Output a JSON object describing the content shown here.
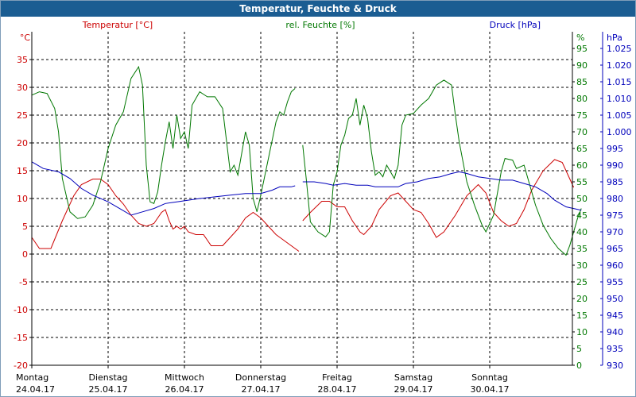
{
  "window": {
    "title": "Temperatur, Feuchte & Druck"
  },
  "colors": {
    "temperature": "#cc0000",
    "humidity": "#007700",
    "pressure": "#0000bb",
    "grid": "#000000",
    "axis_text": "#000000"
  },
  "chart_data": {
    "type": "line",
    "title": "Temperatur, Feuchte & Druck",
    "grid": true,
    "xlim": [
      0,
      7
    ],
    "x_days": [
      {
        "day": "Montag",
        "date": "24.04.17"
      },
      {
        "day": "Dienstag",
        "date": "25.04.17"
      },
      {
        "day": "Mittwoch",
        "date": "26.04.17"
      },
      {
        "day": "Donnerstag",
        "date": "27.04.17"
      },
      {
        "day": "Freitag",
        "date": "28.04.17"
      },
      {
        "day": "Samstag",
        "date": "29.04.17"
      },
      {
        "day": "Sonntag",
        "date": "30.04.17"
      }
    ],
    "axes": {
      "temperature": {
        "label": "Temperatur [°C]",
        "unit": "°C",
        "ylim": [
          -20,
          40
        ],
        "ticks": [
          "35",
          "30",
          "25",
          "20",
          "15",
          "10",
          "5",
          "0",
          "-5",
          "-10",
          "-15",
          "-20"
        ],
        "tick_values": [
          35,
          30,
          25,
          20,
          15,
          10,
          5,
          0,
          -5,
          -10,
          -15,
          -20
        ]
      },
      "humidity": {
        "label": "rel. Feuchte [%]",
        "unit": "%",
        "ylim": [
          0,
          100
        ],
        "ticks": [
          "95",
          "90",
          "85",
          "80",
          "75",
          "70",
          "65",
          "60",
          "55",
          "50",
          "45",
          "40",
          "35",
          "30",
          "25",
          "20",
          "15",
          "10",
          "5",
          "0"
        ],
        "tick_values": [
          95,
          90,
          85,
          80,
          75,
          70,
          65,
          60,
          55,
          50,
          45,
          40,
          35,
          30,
          25,
          20,
          15,
          10,
          5,
          0
        ]
      },
      "pressure": {
        "label": "Druck [hPa]",
        "unit": "hPa",
        "ylim": [
          930,
          1030
        ],
        "ticks": [
          "1.025",
          "1.020",
          "1.015",
          "1.010",
          "1.005",
          "1.000",
          "995",
          "990",
          "985",
          "980",
          "975",
          "970",
          "965",
          "960",
          "955",
          "950",
          "945",
          "940",
          "935",
          "930"
        ],
        "tick_values": [
          1025,
          1020,
          1015,
          1010,
          1005,
          1000,
          995,
          990,
          985,
          980,
          975,
          970,
          965,
          960,
          955,
          950,
          945,
          940,
          935,
          930
        ]
      }
    },
    "series": [
      {
        "name": "Temperatur [°C]",
        "axis": "temperature",
        "color": "#cc0000",
        "segments": [
          [
            [
              0.0,
              3.0
            ],
            [
              0.1,
              1.0
            ],
            [
              0.25,
              1.0
            ],
            [
              0.4,
              6.0
            ],
            [
              0.55,
              10.5
            ],
            [
              0.65,
              12.5
            ],
            [
              0.8,
              13.5
            ],
            [
              0.9,
              13.5
            ],
            [
              1.0,
              12.5
            ],
            [
              1.1,
              10.5
            ],
            [
              1.2,
              9.0
            ],
            [
              1.3,
              7.0
            ],
            [
              1.4,
              5.5
            ],
            [
              1.5,
              5.0
            ],
            [
              1.6,
              5.5
            ],
            [
              1.7,
              7.5
            ],
            [
              1.75,
              8.0
            ],
            [
              1.8,
              6.0
            ],
            [
              1.85,
              4.5
            ],
            [
              1.9,
              5.0
            ],
            [
              1.95,
              4.5
            ],
            [
              2.0,
              5.0
            ],
            [
              2.05,
              4.0
            ],
            [
              2.15,
              3.5
            ],
            [
              2.25,
              3.5
            ],
            [
              2.35,
              1.5
            ],
            [
              2.5,
              1.5
            ],
            [
              2.6,
              3.0
            ],
            [
              2.7,
              4.5
            ],
            [
              2.8,
              6.5
            ],
            [
              2.9,
              7.5
            ],
            [
              3.0,
              6.5
            ],
            [
              3.1,
              5.0
            ],
            [
              3.2,
              3.5
            ],
            [
              3.25,
              3.0
            ],
            [
              3.35,
              2.0
            ],
            [
              3.45,
              1.0
            ],
            [
              3.5,
              0.5
            ]
          ],
          [
            [
              3.55,
              6.0
            ],
            [
              3.65,
              7.5
            ],
            [
              3.8,
              9.5
            ],
            [
              3.9,
              9.5
            ],
            [
              4.0,
              8.5
            ],
            [
              4.1,
              8.5
            ],
            [
              4.2,
              6.0
            ],
            [
              4.3,
              4.0
            ],
            [
              4.35,
              3.5
            ],
            [
              4.45,
              5.0
            ],
            [
              4.55,
              8.0
            ],
            [
              4.7,
              10.5
            ],
            [
              4.8,
              11.0
            ],
            [
              4.9,
              9.5
            ],
            [
              5.0,
              8.0
            ],
            [
              5.1,
              7.5
            ],
            [
              5.2,
              5.5
            ],
            [
              5.3,
              3.0
            ],
            [
              5.4,
              4.0
            ],
            [
              5.55,
              7.0
            ],
            [
              5.7,
              10.5
            ],
            [
              5.85,
              12.5
            ],
            [
              5.95,
              11.0
            ],
            [
              6.05,
              7.5
            ],
            [
              6.15,
              6.0
            ],
            [
              6.25,
              5.0
            ],
            [
              6.35,
              5.5
            ],
            [
              6.45,
              8.0
            ],
            [
              6.55,
              11.5
            ],
            [
              6.7,
              15.0
            ],
            [
              6.85,
              17.0
            ],
            [
              6.95,
              16.5
            ],
            [
              7.05,
              13.5
            ],
            [
              7.1,
              12.0
            ]
          ]
        ]
      },
      {
        "name": "rel. Feuchte [%]",
        "axis": "humidity",
        "color": "#007700",
        "segments": [
          [
            [
              0.0,
              81.0
            ],
            [
              0.1,
              82.0
            ],
            [
              0.2,
              81.5
            ],
            [
              0.3,
              77.0
            ],
            [
              0.35,
              70.0
            ],
            [
              0.4,
              56.0
            ],
            [
              0.5,
              46.0
            ],
            [
              0.6,
              44.0
            ],
            [
              0.7,
              44.5
            ],
            [
              0.8,
              48.0
            ],
            [
              0.9,
              55.0
            ],
            [
              1.0,
              65.0
            ],
            [
              1.1,
              72.0
            ],
            [
              1.2,
              76.0
            ],
            [
              1.3,
              86.0
            ],
            [
              1.4,
              89.5
            ],
            [
              1.45,
              84.0
            ],
            [
              1.5,
              60.0
            ],
            [
              1.55,
              49.0
            ],
            [
              1.6,
              48.5
            ],
            [
              1.65,
              52.0
            ],
            [
              1.7,
              60.0
            ],
            [
              1.75,
              67.0
            ],
            [
              1.8,
              73.0
            ],
            [
              1.85,
              65.0
            ],
            [
              1.9,
              75.0
            ],
            [
              1.95,
              68.0
            ],
            [
              2.0,
              70.0
            ],
            [
              2.05,
              65.0
            ],
            [
              2.1,
              78.0
            ],
            [
              2.2,
              82.0
            ],
            [
              2.3,
              80.5
            ],
            [
              2.4,
              80.5
            ],
            [
              2.5,
              77.0
            ],
            [
              2.6,
              58.0
            ],
            [
              2.65,
              60.0
            ],
            [
              2.7,
              57.0
            ],
            [
              2.8,
              70.0
            ],
            [
              2.85,
              66.0
            ],
            [
              2.9,
              50.0
            ],
            [
              2.95,
              46.0
            ],
            [
              3.0,
              51.0
            ],
            [
              3.1,
              62.0
            ],
            [
              3.2,
              73.0
            ],
            [
              3.25,
              76.0
            ],
            [
              3.3,
              75.0
            ],
            [
              3.35,
              79.0
            ],
            [
              3.4,
              82.0
            ],
            [
              3.45,
              83.0
            ]
          ],
          [
            [
              3.55,
              66.0
            ],
            [
              3.6,
              55.0
            ],
            [
              3.65,
              43.0
            ],
            [
              3.75,
              40.0
            ],
            [
              3.85,
              38.5
            ],
            [
              3.9,
              40.0
            ],
            [
              3.95,
              54.0
            ],
            [
              4.0,
              58.0
            ],
            [
              4.05,
              66.0
            ],
            [
              4.1,
              69.0
            ],
            [
              4.15,
              74.0
            ],
            [
              4.2,
              75.0
            ],
            [
              4.25,
              80.0
            ],
            [
              4.3,
              72.0
            ],
            [
              4.35,
              78.0
            ],
            [
              4.4,
              74.0
            ],
            [
              4.45,
              64.0
            ],
            [
              4.5,
              57.0
            ],
            [
              4.55,
              58.0
            ],
            [
              4.6,
              56.5
            ],
            [
              4.65,
              60.0
            ],
            [
              4.7,
              58.0
            ],
            [
              4.75,
              56.0
            ],
            [
              4.8,
              60.0
            ],
            [
              4.85,
              72.0
            ],
            [
              4.9,
              75.0
            ],
            [
              5.0,
              75.5
            ],
            [
              5.1,
              78.0
            ],
            [
              5.2,
              80.0
            ],
            [
              5.3,
              84.0
            ],
            [
              5.4,
              85.5
            ],
            [
              5.5,
              84.0
            ],
            [
              5.55,
              75.0
            ],
            [
              5.6,
              67.0
            ],
            [
              5.7,
              55.0
            ],
            [
              5.8,
              48.0
            ],
            [
              5.9,
              42.0
            ],
            [
              5.95,
              40.0
            ],
            [
              6.05,
              45.0
            ],
            [
              6.15,
              58.0
            ],
            [
              6.2,
              62.0
            ],
            [
              6.3,
              61.5
            ],
            [
              6.35,
              59.0
            ],
            [
              6.45,
              60.0
            ],
            [
              6.5,
              56.0
            ],
            [
              6.6,
              48.0
            ],
            [
              6.7,
              42.0
            ],
            [
              6.8,
              38.0
            ],
            [
              6.9,
              35.0
            ],
            [
              7.0,
              33.0
            ],
            [
              7.05,
              36.0
            ],
            [
              7.15,
              44.0
            ],
            [
              7.2,
              47.0
            ]
          ]
        ]
      },
      {
        "name": "Druck [hPa]",
        "axis": "pressure",
        "color": "#0000bb",
        "segments": [
          [
            [
              0.0,
              991.0
            ],
            [
              0.15,
              989.0
            ],
            [
              0.35,
              988.0
            ],
            [
              0.5,
              986.0
            ],
            [
              0.65,
              983.0
            ],
            [
              0.8,
              981.0
            ],
            [
              1.0,
              979.0
            ],
            [
              1.15,
              977.0
            ],
            [
              1.3,
              975.0
            ],
            [
              1.45,
              976.0
            ],
            [
              1.6,
              977.0
            ],
            [
              1.75,
              978.5
            ],
            [
              1.9,
              979.0
            ],
            [
              2.05,
              979.5
            ],
            [
              2.2,
              980.0
            ],
            [
              2.4,
              980.5
            ],
            [
              2.6,
              981.0
            ],
            [
              2.8,
              981.5
            ],
            [
              3.0,
              981.5
            ],
            [
              3.15,
              982.5
            ],
            [
              3.25,
              983.5
            ],
            [
              3.4,
              983.5
            ],
            [
              3.45,
              983.8
            ]
          ],
          [
            [
              3.55,
              985.0
            ],
            [
              3.7,
              985.0
            ],
            [
              3.85,
              984.5
            ],
            [
              3.95,
              984.0
            ],
            [
              4.1,
              984.5
            ],
            [
              4.25,
              984.0
            ],
            [
              4.4,
              984.0
            ],
            [
              4.5,
              983.5
            ],
            [
              4.65,
              983.5
            ],
            [
              4.8,
              983.5
            ],
            [
              4.9,
              984.5
            ],
            [
              5.05,
              985.0
            ],
            [
              5.2,
              986.0
            ],
            [
              5.35,
              986.5
            ],
            [
              5.5,
              987.5
            ],
            [
              5.6,
              988.0
            ],
            [
              5.7,
              987.5
            ],
            [
              5.85,
              986.5
            ],
            [
              6.0,
              986.0
            ],
            [
              6.15,
              985.5
            ],
            [
              6.3,
              985.5
            ],
            [
              6.45,
              984.5
            ],
            [
              6.6,
              983.5
            ],
            [
              6.75,
              981.5
            ],
            [
              6.85,
              979.5
            ],
            [
              7.0,
              977.5
            ],
            [
              7.1,
              977.0
            ],
            [
              7.2,
              976.5
            ]
          ]
        ]
      }
    ]
  }
}
